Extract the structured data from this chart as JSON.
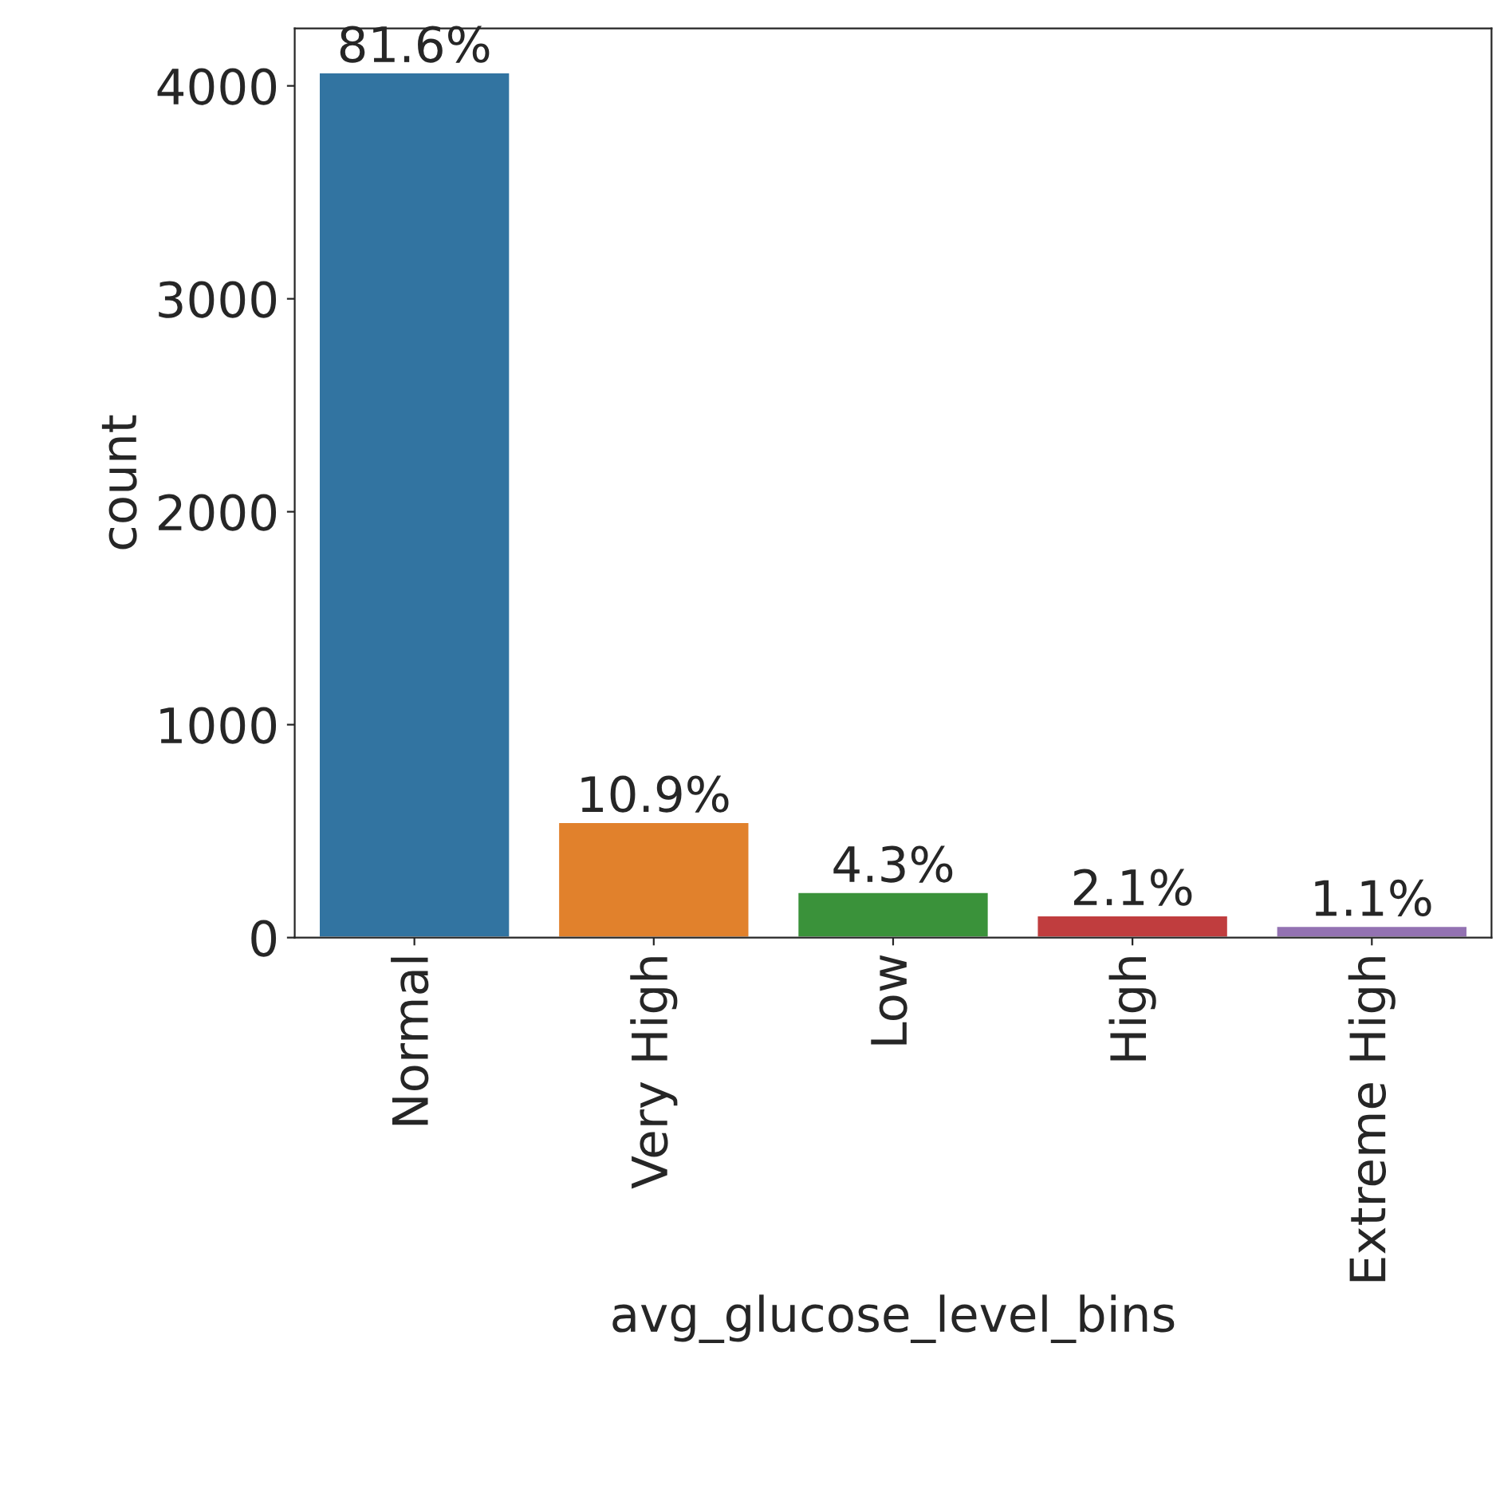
{
  "chart_data": {
    "type": "bar",
    "xlabel": "avg_glucose_level_bins",
    "ylabel": "count",
    "categories": [
      "Normal",
      "Very High",
      "Low",
      "High",
      "Extreme High"
    ],
    "values": [
      4064,
      543,
      214,
      105,
      55
    ],
    "colors": [
      "#3274a1",
      "#e1812c",
      "#3a923a",
      "#c03d3e",
      "#9372b2"
    ],
    "annotations": [
      {
        "text": "81.6%",
        "x": "Normal",
        "y": 4064
      },
      {
        "text": "10.9%",
        "x": "Very High",
        "y": 543
      },
      {
        "text": "4.3%",
        "x": "Low",
        "y": 214
      },
      {
        "text": "2.1%",
        "x": "High",
        "y": 105
      },
      {
        "text": "1.1%",
        "x": "Extreme High",
        "y": 55
      }
    ],
    "ylim": [
      0,
      4270
    ],
    "yticks": [
      0,
      1000,
      2000,
      3000,
      4000
    ],
    "grid": false,
    "legend": false
  }
}
